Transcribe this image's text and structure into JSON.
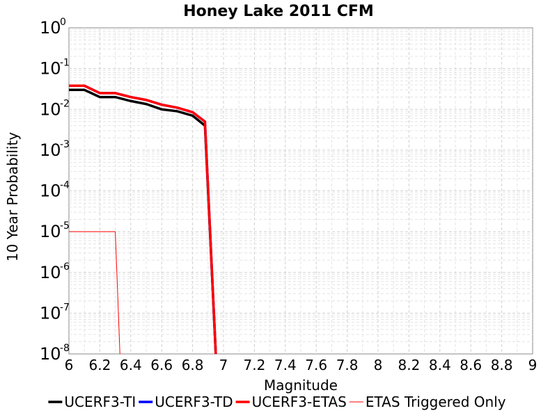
{
  "chart_data": {
    "type": "line",
    "title": "Honey Lake 2011 CFM",
    "xlabel": "Magnitude",
    "ylabel": "10 Year Probability",
    "xlim": [
      6,
      9
    ],
    "ylim": [
      1e-08,
      1
    ],
    "yscale": "log",
    "grid": true,
    "legend_position": "bottom",
    "x_ticks": [
      "6",
      "6.2",
      "6.4",
      "6.6",
      "6.8",
      "7",
      "7.2",
      "7.4",
      "7.6",
      "7.8",
      "8",
      "8.2",
      "8.4",
      "8.6",
      "8.8",
      "9"
    ],
    "y_ticks": [
      {
        "base": "10",
        "exp": "-8"
      },
      {
        "base": "10",
        "exp": "-7"
      },
      {
        "base": "10",
        "exp": "-6"
      },
      {
        "base": "10",
        "exp": "-5"
      },
      {
        "base": "10",
        "exp": "-4"
      },
      {
        "base": "10",
        "exp": "-3"
      },
      {
        "base": "10",
        "exp": "-2"
      },
      {
        "base": "10",
        "exp": "-1"
      },
      {
        "base": "10",
        "exp": "0"
      }
    ],
    "series": [
      {
        "name": "UCERF3-TI",
        "color": "#000000",
        "style": "thick",
        "x": [
          6.0,
          6.1,
          6.2,
          6.3,
          6.4,
          6.5,
          6.6,
          6.7,
          6.8,
          6.88,
          6.95
        ],
        "y": [
          0.03,
          0.03,
          0.02,
          0.02,
          0.016,
          0.0135,
          0.01,
          0.009,
          0.007,
          0.004,
          1e-08
        ]
      },
      {
        "name": "UCERF3-TD",
        "color": "#0000ff",
        "style": "thick",
        "x": [
          6.0,
          6.1,
          6.2,
          6.3,
          6.4,
          6.5,
          6.6,
          6.7,
          6.8,
          6.88,
          6.95
        ],
        "y": [
          0.038,
          0.038,
          0.025,
          0.025,
          0.02,
          0.017,
          0.013,
          0.011,
          0.0085,
          0.005,
          1e-08
        ]
      },
      {
        "name": "UCERF3-ETAS",
        "color": "#ff0000",
        "style": "thick",
        "x": [
          6.0,
          6.1,
          6.2,
          6.3,
          6.4,
          6.5,
          6.6,
          6.7,
          6.8,
          6.88,
          6.95
        ],
        "y": [
          0.038,
          0.038,
          0.025,
          0.025,
          0.02,
          0.017,
          0.013,
          0.011,
          0.0085,
          0.005,
          1e-08
        ]
      },
      {
        "name": "ETAS Triggered Only",
        "color": "#ff0000",
        "style": "thin",
        "x": [
          6.0,
          6.1,
          6.2,
          6.3,
          6.33
        ],
        "y": [
          1e-05,
          1e-05,
          1e-05,
          1e-05,
          1e-08
        ]
      }
    ]
  }
}
